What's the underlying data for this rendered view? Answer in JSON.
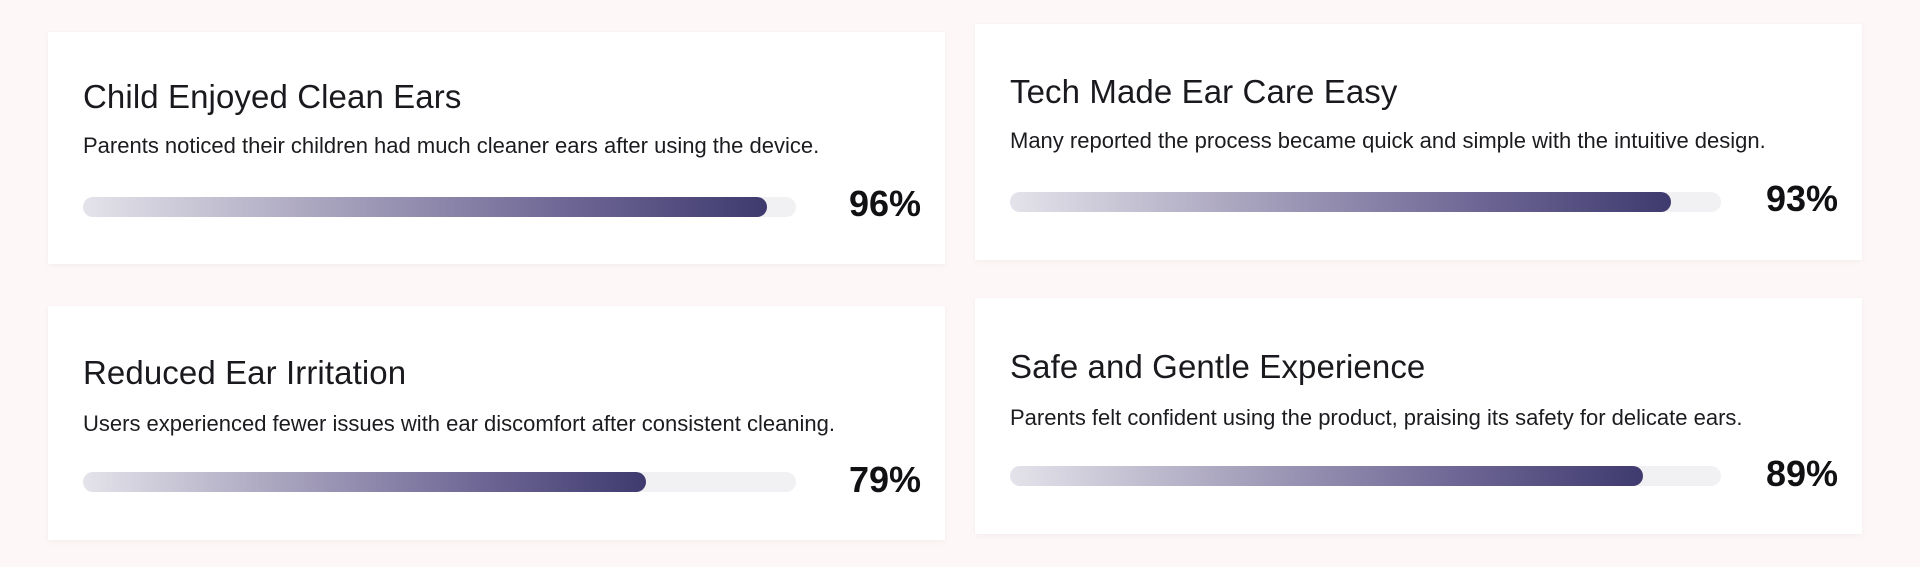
{
  "stats": [
    {
      "title": "Child Enjoyed Clean Ears",
      "description": "Parents noticed their children had much cleaner ears after using the device.",
      "percent_label": "96%",
      "progress": 0.96
    },
    {
      "title": "Tech Made Ear Care Easy",
      "description": "Many reported the process became quick and simple with the intuitive design.",
      "percent_label": "93%",
      "progress": 0.93
    },
    {
      "title": "Reduced Ear Irritation",
      "description": "Users experienced fewer issues with ear discomfort after consistent cleaning.",
      "percent_label": "79%",
      "progress": 0.79
    },
    {
      "title": "Safe and Gentle Experience",
      "description": "Parents felt confident using the product, praising its safety for delicate ears.",
      "percent_label": "89%",
      "progress": 0.89
    }
  ],
  "colors": {
    "bar_start": "#e4e3ea",
    "bar_end": "#3f3a6e",
    "track": "#f1f0f3",
    "background": "#fdf8f7"
  }
}
